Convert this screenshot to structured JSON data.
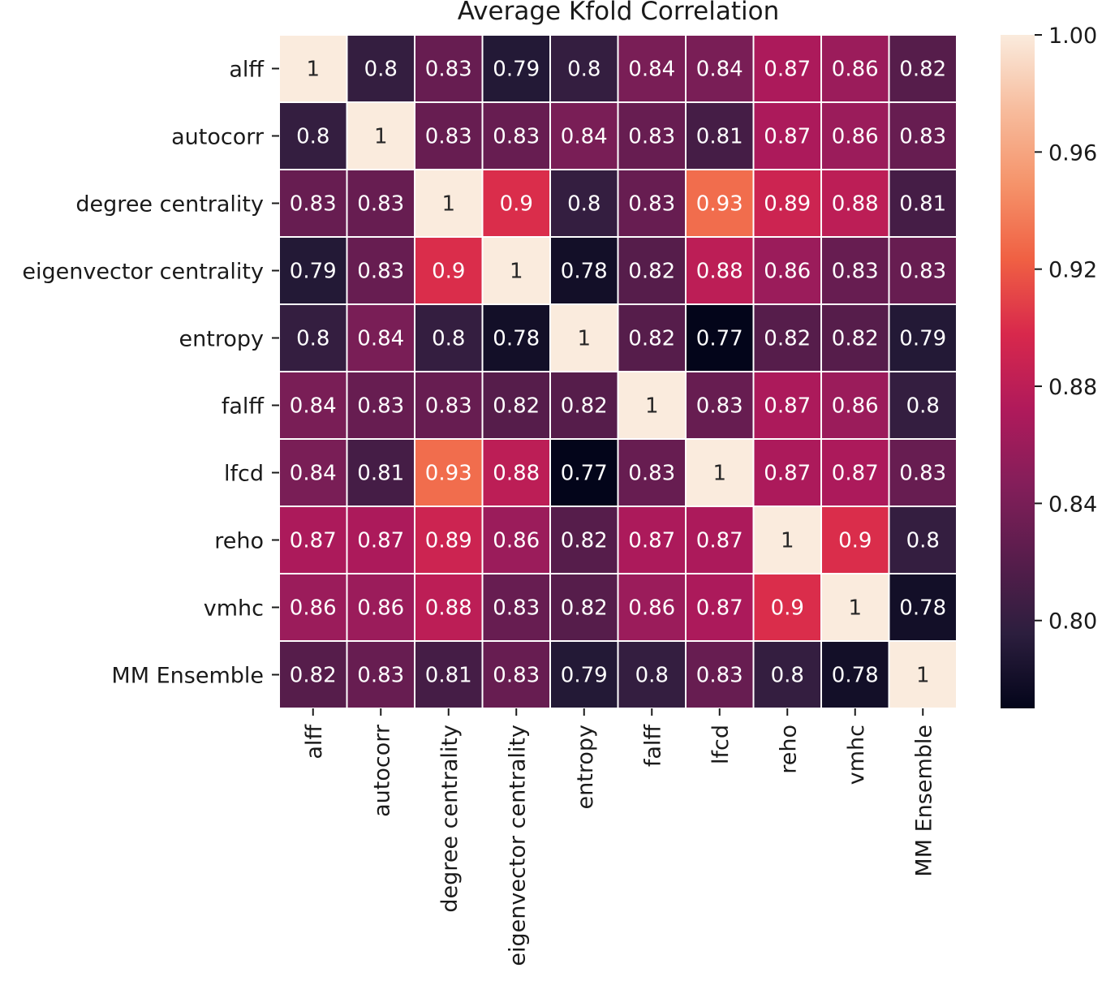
{
  "chart_data": {
    "type": "heatmap",
    "title": "Average Kfold Correlation",
    "row_labels": [
      "alff",
      "autocorr",
      "degree centrality",
      "eigenvector centrality",
      "entropy",
      "falff",
      "lfcd",
      "reho",
      "vmhc",
      "MM Ensemble"
    ],
    "col_labels": [
      "alff",
      "autocorr",
      "degree centrality",
      "eigenvector centrality",
      "entropy",
      "falff",
      "lfcd",
      "reho",
      "vmhc",
      "MM Ensemble"
    ],
    "values": [
      [
        1,
        0.8,
        0.83,
        0.79,
        0.8,
        0.84,
        0.84,
        0.87,
        0.86,
        0.82
      ],
      [
        0.8,
        1,
        0.83,
        0.83,
        0.84,
        0.83,
        0.81,
        0.87,
        0.86,
        0.83
      ],
      [
        0.83,
        0.83,
        1,
        0.9,
        0.8,
        0.83,
        0.93,
        0.89,
        0.88,
        0.81
      ],
      [
        0.79,
        0.83,
        0.9,
        1,
        0.78,
        0.82,
        0.88,
        0.86,
        0.83,
        0.83
      ],
      [
        0.8,
        0.84,
        0.8,
        0.78,
        1,
        0.82,
        0.77,
        0.82,
        0.82,
        0.79
      ],
      [
        0.84,
        0.83,
        0.83,
        0.82,
        0.82,
        1,
        0.83,
        0.87,
        0.86,
        0.8
      ],
      [
        0.84,
        0.81,
        0.93,
        0.88,
        0.77,
        0.83,
        1,
        0.87,
        0.87,
        0.83
      ],
      [
        0.87,
        0.87,
        0.89,
        0.86,
        0.82,
        0.87,
        0.87,
        1,
        0.9,
        0.8
      ],
      [
        0.86,
        0.86,
        0.88,
        0.83,
        0.82,
        0.86,
        0.87,
        0.9,
        1,
        0.78
      ],
      [
        0.82,
        0.83,
        0.81,
        0.83,
        0.79,
        0.8,
        0.83,
        0.8,
        0.78,
        1
      ]
    ],
    "colorbar": {
      "min": 0.77,
      "max": 1.0,
      "ticks": [
        "1.00",
        "0.96",
        "0.92",
        "0.88",
        "0.84",
        "0.80"
      ],
      "colormap": "rocket",
      "placement": "right"
    },
    "colormap_stops": [
      "#03051a",
      "#2c1e3e",
      "#581d4c",
      "#841e5a",
      "#b01a5b",
      "#d8284c",
      "#f06043",
      "#f5936a",
      "#f7bc9d",
      "#faebdd"
    ],
    "grid_line_color": "#ffffff"
  }
}
